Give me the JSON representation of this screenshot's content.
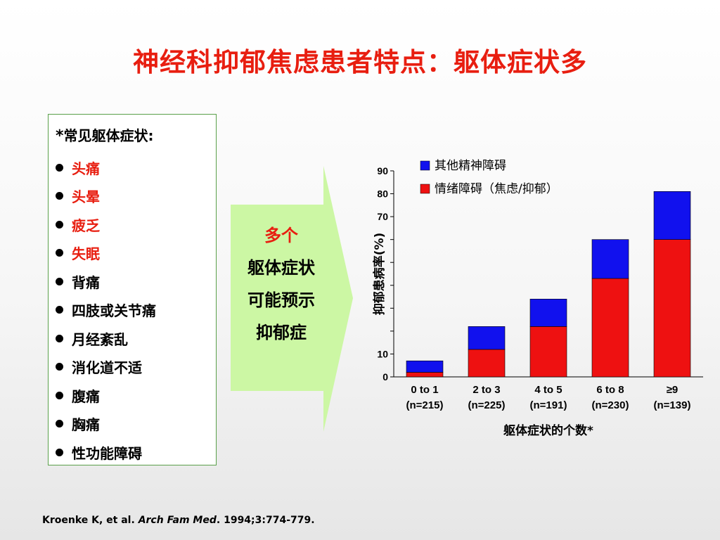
{
  "title": "神经科抑郁焦虑患者特点：躯体症状多",
  "symptom_box": {
    "asterisk": "*",
    "heading": "常见躯体症状:",
    "items": [
      {
        "label": "头痛",
        "highlight": true
      },
      {
        "label": "头晕",
        "highlight": true
      },
      {
        "label": "疲乏",
        "highlight": true
      },
      {
        "label": "失眠",
        "highlight": true
      },
      {
        "label": "背痛",
        "highlight": false
      },
      {
        "label": "四肢或关节痛",
        "highlight": false
      },
      {
        "label": "月经紊乱",
        "highlight": false
      },
      {
        "label": "消化道不适",
        "highlight": false
      },
      {
        "label": "腹痛",
        "highlight": false
      },
      {
        "label": "胸痛",
        "highlight": false
      },
      {
        "label": "性功能障碍",
        "highlight": false
      }
    ]
  },
  "arrow": {
    "lines": [
      "多个",
      "躯体症状",
      "可能预示",
      "抑郁症"
    ],
    "fill_color": "#ccf7a4"
  },
  "chart_data": {
    "type": "bar",
    "stacked": true,
    "categories": [
      "0 to 1\n(n=215)",
      "2 to 3\n(n=225)",
      "4 to 5\n(n=191)",
      "6 to 8\n(n=230)",
      "≥9\n(n=139)"
    ],
    "category_lines": [
      [
        "0 to 1",
        "(n=215)"
      ],
      [
        "2 to 3",
        "(n=225)"
      ],
      [
        "4 to 5",
        "(n=191)"
      ],
      [
        "6 to 8",
        "(n=230)"
      ],
      [
        "≥9",
        "(n=139)"
      ]
    ],
    "series": [
      {
        "name": "情绪障碍（焦虑/抑郁）",
        "color": "#ee1111",
        "values": [
          2,
          12,
          22,
          43,
          60
        ]
      },
      {
        "name": "其他精神障碍",
        "color": "#1111ee",
        "values": [
          5,
          10,
          12,
          17,
          21
        ]
      }
    ],
    "legend_order": [
      1,
      0
    ],
    "ylim": [
      0,
      90
    ],
    "yticks": [
      0,
      10,
      20,
      30,
      40,
      50,
      60,
      70,
      80,
      90
    ],
    "ytick_labels_visible": [
      "0",
      "10",
      "",
      "",
      "",
      "",
      "",
      "70",
      "80",
      "90"
    ],
    "ylabel": "抑郁患病率(%)",
    "xlabel": "躯体症状的个数*",
    "legend_position": "top-right"
  },
  "citation": {
    "authors": "Kroenke K, et al. ",
    "journal": "Arch Fam Med",
    "rest": ". 1994;3:774-779."
  }
}
